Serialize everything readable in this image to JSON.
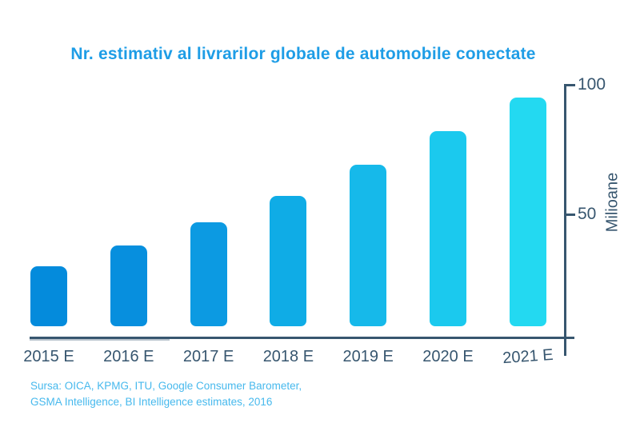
{
  "title": "Nr. estimativ al livrarilor globale de automobile conectate",
  "colors": {
    "title": "#1E9DE6",
    "axis": "#37566F",
    "source": "#47B9ED"
  },
  "y_axis": {
    "label": "Milioane",
    "ticks": [
      {
        "label": "100",
        "value": 100
      },
      {
        "label": "50",
        "value": 50
      }
    ]
  },
  "source": {
    "line1": "Sursa: OICA, KPMG, ITU, Google Consumer Barometer,",
    "line2": "GSMA Intelligence, BI Intelligence estimates, 2016"
  },
  "chart_data": {
    "type": "bar",
    "title": "Nr. estimativ al livrarilor globale de automobile conectate",
    "categories": [
      "2015 E",
      "2016 E",
      "2017 E",
      "2018 E",
      "2019 E",
      "2020 E",
      "2021 E"
    ],
    "values": [
      30,
      38,
      47,
      57,
      69,
      82,
      95
    ],
    "xlabel": "",
    "ylabel": "Milioane",
    "ylim": [
      0,
      105
    ],
    "yticks": [
      50,
      100
    ],
    "grid": false,
    "legend": "none",
    "axis_position": "right",
    "bar_colors": [
      "#048BDC",
      "#078FDE",
      "#0C9AE2",
      "#0FACE6",
      "#16B9EA",
      "#1BC9EE",
      "#23D9F1"
    ]
  }
}
